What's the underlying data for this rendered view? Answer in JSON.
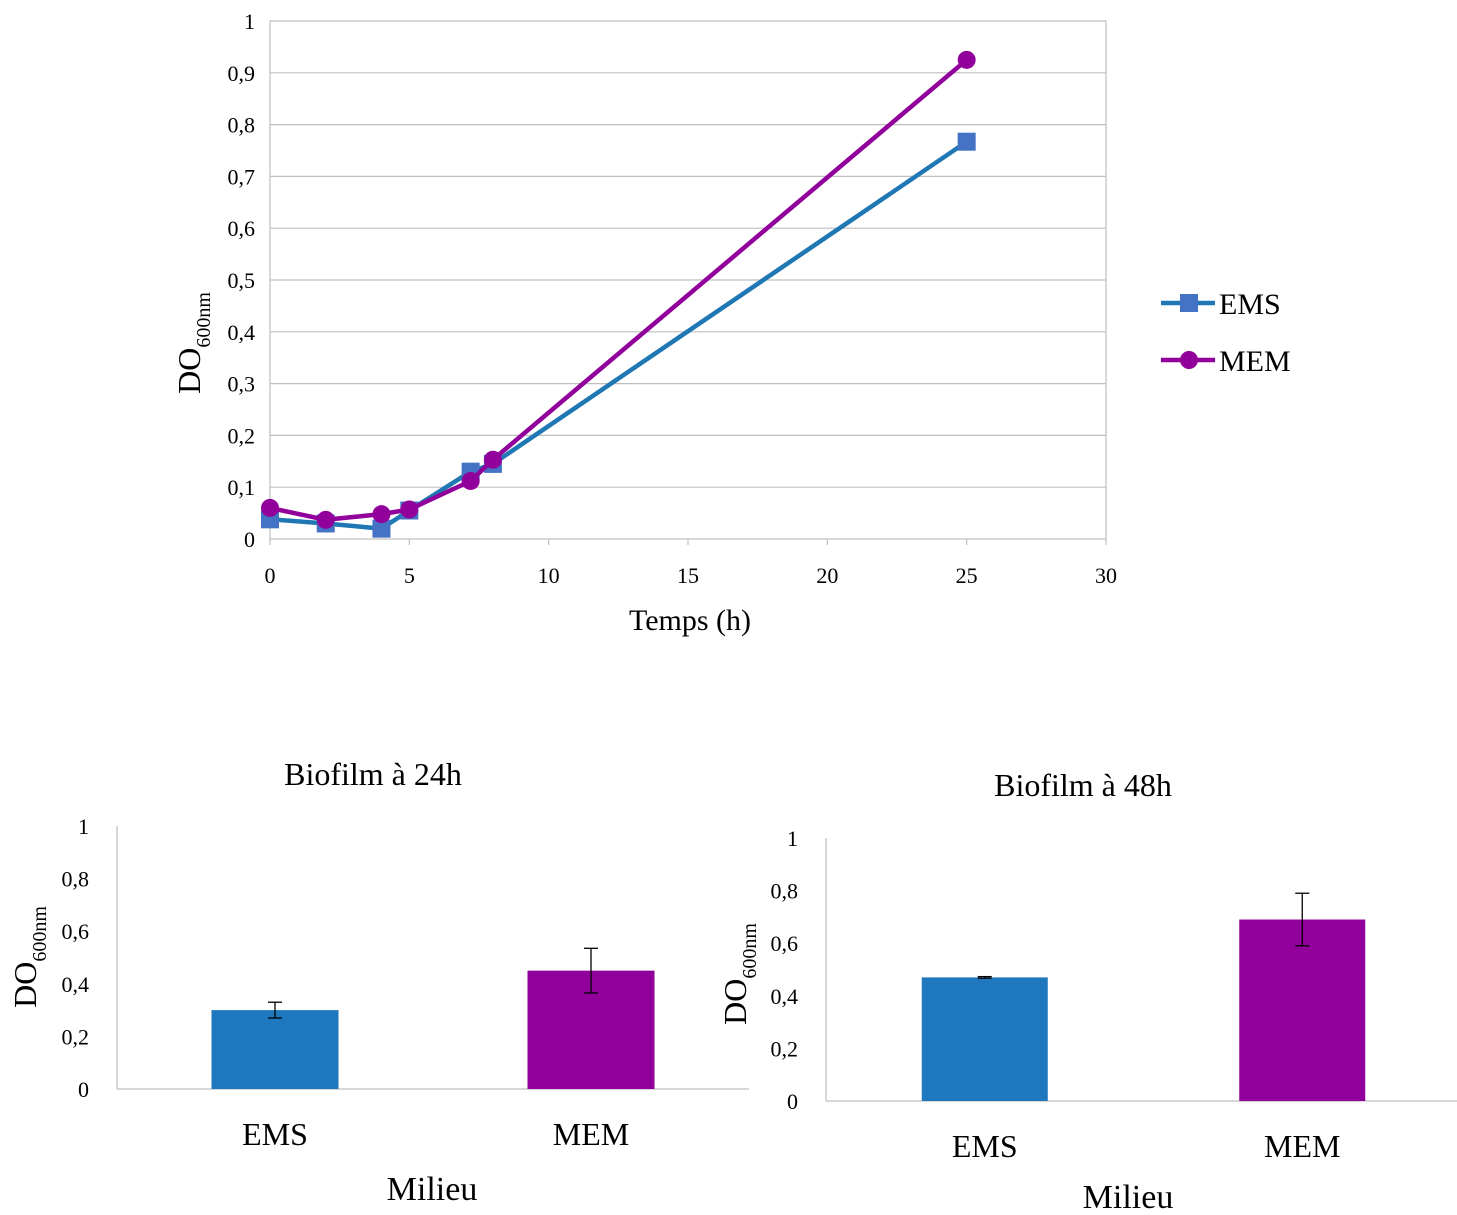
{
  "chart_data": [
    {
      "type": "line",
      "xlabel": "Temps (h)",
      "ylabel": "DO",
      "ylabel_subscript": "600nm",
      "xlim": [
        0,
        30
      ],
      "ylim": [
        0,
        1
      ],
      "xticks": [
        "0",
        "5",
        "10",
        "15",
        "20",
        "25",
        "30"
      ],
      "yticks": [
        "0",
        "0,1",
        "0,2",
        "0,3",
        "0,4",
        "0,5",
        "0,6",
        "0,7",
        "0,8",
        "0,9",
        "1"
      ],
      "grid": true,
      "legend": "right",
      "series": [
        {
          "name": "EMS",
          "color": "#1f77b4",
          "marker": "square",
          "marker_color": "#4472c4",
          "x": [
            0,
            2,
            4,
            5,
            7.2,
            8,
            25
          ],
          "y": [
            0.038,
            0.03,
            0.02,
            0.055,
            0.13,
            0.145,
            0.767
          ]
        },
        {
          "name": "MEM",
          "color": "#92009b",
          "marker": "circle",
          "marker_color": "#92009b",
          "x": [
            0,
            2,
            4,
            5,
            7.2,
            8,
            25
          ],
          "y": [
            0.06,
            0.037,
            0.048,
            0.057,
            0.112,
            0.153,
            0.925
          ]
        }
      ]
    },
    {
      "type": "bar",
      "title": "Biofilm à 24h",
      "xlabel": "Milieu",
      "ylabel": "DO",
      "ylabel_subscript": "600nm",
      "ylim": [
        0,
        1
      ],
      "yticks": [
        "0",
        "0,2",
        "0,4",
        "0,6",
        "0,8",
        "1"
      ],
      "categories": [
        "EMS",
        "MEM"
      ],
      "values": [
        0.3,
        0.45
      ],
      "errors": [
        0.03,
        0.085
      ],
      "colors": [
        "#1f77bd",
        "#92009b"
      ]
    },
    {
      "type": "bar",
      "title": "Biofilm à 48h",
      "xlabel": "Milieu",
      "ylabel": "DO",
      "ylabel_subscript": "600nm",
      "ylim": [
        0,
        1
      ],
      "yticks": [
        "0",
        "0,2",
        "0,4",
        "0,6",
        "0,8",
        "1"
      ],
      "categories": [
        "EMS",
        "MEM"
      ],
      "values": [
        0.47,
        0.69
      ],
      "errors": [
        0.003,
        0.1
      ],
      "colors": [
        "#1f77bd",
        "#92009b"
      ]
    }
  ]
}
